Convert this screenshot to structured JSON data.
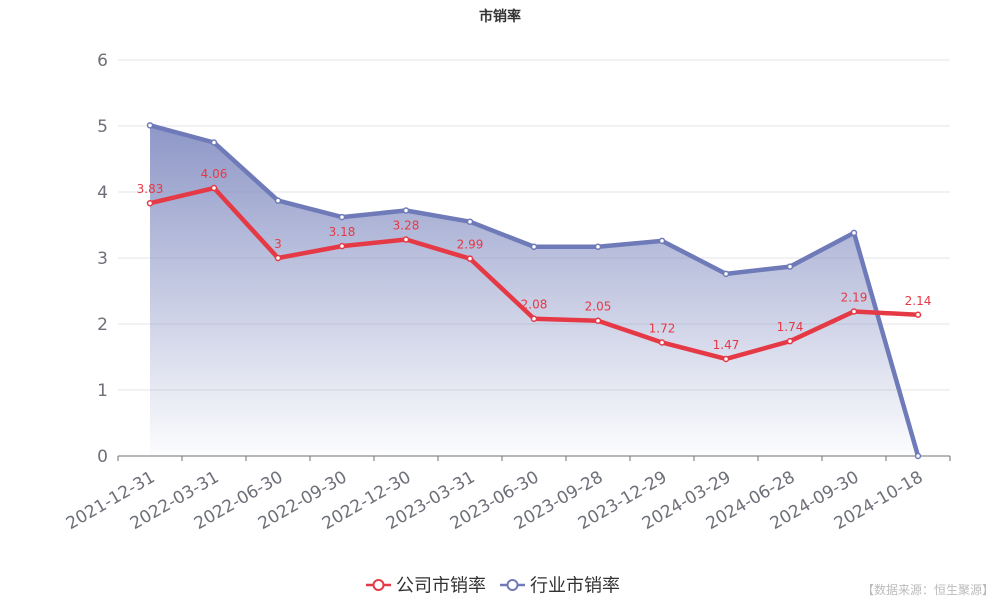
{
  "chart_data": {
    "type": "line",
    "title": "市销率",
    "categories": [
      "2021-12-31",
      "2022-03-31",
      "2022-06-30",
      "2022-09-30",
      "2022-12-30",
      "2023-03-31",
      "2023-06-30",
      "2023-09-28",
      "2023-12-29",
      "2024-03-29",
      "2024-06-28",
      "2024-09-30",
      "2024-10-18"
    ],
    "ylim": [
      0,
      6
    ],
    "yticks": [
      "0",
      "1",
      "2",
      "3",
      "4",
      "5",
      "6"
    ],
    "grid": true,
    "legend_position": "bottom-center",
    "series": [
      {
        "name": "公司市销率",
        "color": "#e63946",
        "values": [
          3.83,
          4.06,
          3,
          3.18,
          3.28,
          2.99,
          2.08,
          2.05,
          1.72,
          1.47,
          1.74,
          2.19,
          2.14
        ],
        "labels": [
          "3.83",
          "4.06",
          "3",
          "3.18",
          "3.28",
          "2.99",
          "2.08",
          "2.05",
          "1.72",
          "1.47",
          "1.74",
          "2.19",
          "2.14"
        ]
      },
      {
        "name": "行业市销率",
        "color": "#6f7ab8",
        "area": true,
        "values": [
          5.01,
          4.75,
          3.87,
          3.62,
          3.72,
          3.55,
          3.17,
          3.17,
          3.26,
          2.76,
          2.87,
          3.38,
          0
        ]
      }
    ]
  },
  "source_note": "【数据来源：恒生聚源】"
}
